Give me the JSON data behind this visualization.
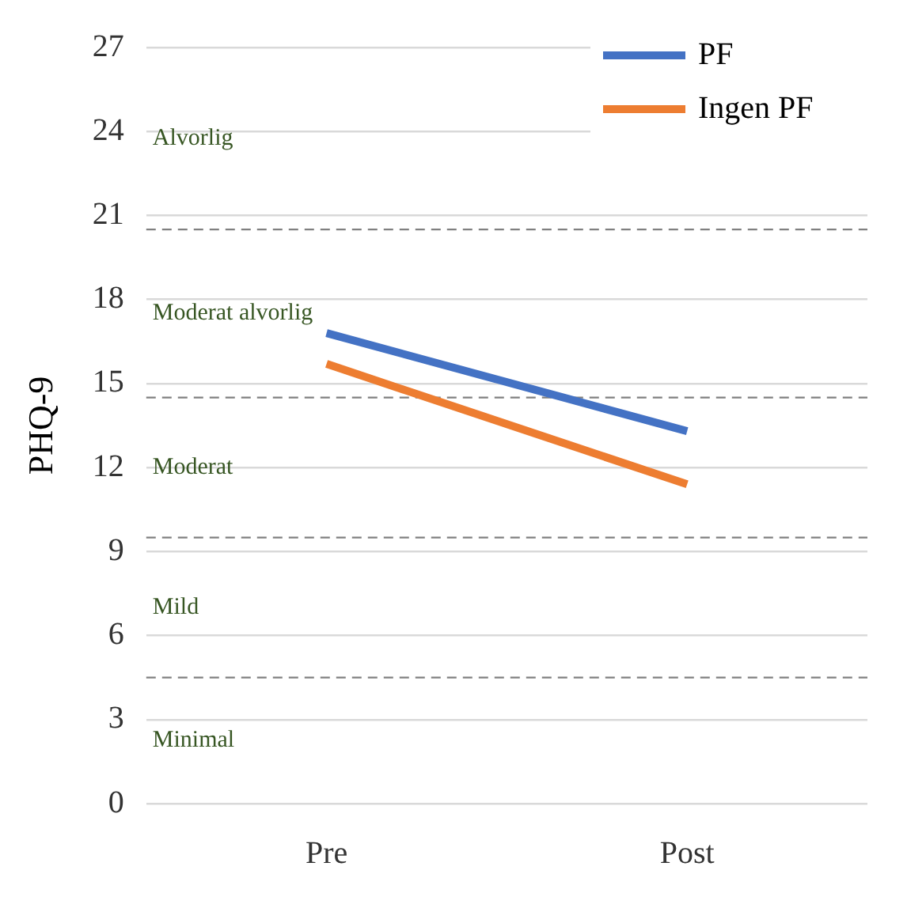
{
  "chart_data": {
    "type": "line",
    "ylabel": "PHQ-9",
    "categories": [
      "Pre",
      "Post"
    ],
    "series": [
      {
        "name": "PF",
        "color": "#4472c4",
        "values": [
          16.8,
          13.3
        ]
      },
      {
        "name": "Ingen PF",
        "color": "#ed7d31",
        "values": [
          15.7,
          11.4
        ]
      }
    ],
    "ylim": [
      0,
      27
    ],
    "yticks": [
      0,
      3,
      6,
      9,
      12,
      15,
      18,
      21,
      24,
      27
    ],
    "grid": "y",
    "legend": "top right",
    "marker": "none",
    "line_style": "solid",
    "ref_lines": [
      {
        "axis": "y",
        "value": 4.5,
        "color": "#808080",
        "line_style": "dashed"
      },
      {
        "axis": "y",
        "value": 9.5,
        "color": "#808080",
        "line_style": "dashed"
      },
      {
        "axis": "y",
        "value": 14.5,
        "color": "#808080",
        "line_style": "dashed"
      },
      {
        "axis": "y",
        "value": 20.5,
        "color": "#808080",
        "line_style": "dashed"
      }
    ],
    "annotations": [
      "Minimal",
      "Mild",
      "Moderat",
      "Moderat alvorlig",
      "Alvorlig"
    ]
  }
}
